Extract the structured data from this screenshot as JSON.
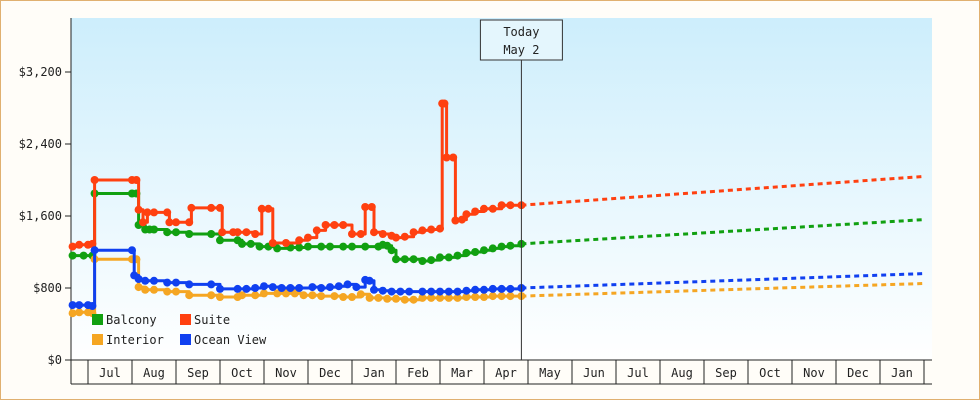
{
  "chart_data": {
    "type": "line",
    "title": "",
    "xlabel": "",
    "ylabel": "",
    "ylim": [
      0,
      3800
    ],
    "y_ticks": [
      {
        "value": 0,
        "label": "$0"
      },
      {
        "value": 800,
        "label": "$800"
      },
      {
        "value": 1600,
        "label": "$1,600"
      },
      {
        "value": 2400,
        "label": "$2,400"
      },
      {
        "value": 3200,
        "label": "$3,200"
      }
    ],
    "x_unit": "month index (0 = start of Jul)",
    "xlim": [
      -0.4,
      19.0
    ],
    "months": [
      "Jul",
      "Aug",
      "Sep",
      "Oct",
      "Nov",
      "Dec",
      "Jan",
      "Feb",
      "Mar",
      "Apr",
      "May",
      "Jun",
      "Jul",
      "Aug",
      "Sep",
      "Oct",
      "Nov",
      "Dec",
      "Jan"
    ],
    "today": {
      "x": 9.85,
      "line1": "Today",
      "line2": "May 2"
    },
    "grid": false,
    "legend_position": "bottom-left",
    "colors": {
      "Balcony": "#11a011",
      "Suite": "#ff4010",
      "Interior": "#f5a623",
      "Ocean View": "#1040f0"
    },
    "series": [
      {
        "name": "Balcony",
        "color": "#11a011",
        "values": [
          [
            -0.35,
            1160
          ],
          [
            -0.1,
            1160
          ],
          [
            0.1,
            1160
          ],
          [
            0.15,
            1850
          ],
          [
            1.0,
            1850
          ],
          [
            1.1,
            1850
          ],
          [
            1.15,
            1500
          ],
          [
            1.3,
            1450
          ],
          [
            1.4,
            1450
          ],
          [
            1.5,
            1450
          ],
          [
            1.8,
            1420
          ],
          [
            2.0,
            1420
          ],
          [
            2.3,
            1400
          ],
          [
            2.8,
            1400
          ],
          [
            3.0,
            1330
          ],
          [
            3.4,
            1330
          ],
          [
            3.5,
            1290
          ],
          [
            3.7,
            1290
          ],
          [
            3.9,
            1260
          ],
          [
            4.1,
            1260
          ],
          [
            4.3,
            1240
          ],
          [
            4.6,
            1250
          ],
          [
            4.8,
            1250
          ],
          [
            5.0,
            1260
          ],
          [
            5.3,
            1260
          ],
          [
            5.5,
            1260
          ],
          [
            5.8,
            1260
          ],
          [
            6.0,
            1260
          ],
          [
            6.3,
            1260
          ],
          [
            6.6,
            1260
          ],
          [
            6.7,
            1280
          ],
          [
            6.8,
            1270
          ],
          [
            6.9,
            1220
          ],
          [
            7.0,
            1120
          ],
          [
            7.2,
            1120
          ],
          [
            7.4,
            1120
          ],
          [
            7.6,
            1100
          ],
          [
            7.8,
            1110
          ],
          [
            8.0,
            1140
          ],
          [
            8.2,
            1140
          ],
          [
            8.4,
            1160
          ],
          [
            8.6,
            1190
          ],
          [
            8.8,
            1200
          ],
          [
            9.0,
            1220
          ],
          [
            9.2,
            1240
          ],
          [
            9.4,
            1260
          ],
          [
            9.6,
            1270
          ],
          [
            9.85,
            1290
          ]
        ],
        "forecast": [
          [
            9.85,
            1290
          ],
          [
            19.0,
            1560
          ]
        ]
      },
      {
        "name": "Suite",
        "color": "#ff4010",
        "values": [
          [
            -0.35,
            1260
          ],
          [
            -0.2,
            1280
          ],
          [
            0.0,
            1280
          ],
          [
            0.1,
            1290
          ],
          [
            0.15,
            2000
          ],
          [
            1.0,
            2000
          ],
          [
            1.1,
            2000
          ],
          [
            1.15,
            1670
          ],
          [
            1.25,
            1530
          ],
          [
            1.35,
            1640
          ],
          [
            1.5,
            1640
          ],
          [
            1.8,
            1640
          ],
          [
            1.85,
            1530
          ],
          [
            2.0,
            1530
          ],
          [
            2.3,
            1530
          ],
          [
            2.35,
            1690
          ],
          [
            2.8,
            1690
          ],
          [
            3.0,
            1690
          ],
          [
            3.05,
            1420
          ],
          [
            3.3,
            1420
          ],
          [
            3.4,
            1420
          ],
          [
            3.6,
            1420
          ],
          [
            3.8,
            1400
          ],
          [
            3.95,
            1680
          ],
          [
            4.1,
            1680
          ],
          [
            4.2,
            1300
          ],
          [
            4.5,
            1300
          ],
          [
            4.8,
            1330
          ],
          [
            5.0,
            1360
          ],
          [
            5.2,
            1440
          ],
          [
            5.4,
            1500
          ],
          [
            5.6,
            1500
          ],
          [
            5.8,
            1500
          ],
          [
            6.0,
            1400
          ],
          [
            6.2,
            1400
          ],
          [
            6.3,
            1700
          ],
          [
            6.45,
            1700
          ],
          [
            6.5,
            1420
          ],
          [
            6.7,
            1400
          ],
          [
            6.9,
            1380
          ],
          [
            7.0,
            1360
          ],
          [
            7.2,
            1370
          ],
          [
            7.4,
            1420
          ],
          [
            7.6,
            1440
          ],
          [
            7.8,
            1450
          ],
          [
            8.0,
            1460
          ],
          [
            8.05,
            2850
          ],
          [
            8.1,
            2850
          ],
          [
            8.15,
            2250
          ],
          [
            8.3,
            2250
          ],
          [
            8.35,
            1550
          ],
          [
            8.5,
            1560
          ],
          [
            8.6,
            1620
          ],
          [
            8.8,
            1650
          ],
          [
            9.0,
            1680
          ],
          [
            9.2,
            1680
          ],
          [
            9.4,
            1720
          ],
          [
            9.6,
            1720
          ],
          [
            9.85,
            1720
          ]
        ],
        "forecast": [
          [
            9.85,
            1720
          ],
          [
            19.0,
            2040
          ]
        ]
      },
      {
        "name": "Interior",
        "color": "#f5a623",
        "values": [
          [
            -0.35,
            520
          ],
          [
            -0.2,
            530
          ],
          [
            0.0,
            530
          ],
          [
            0.1,
            520
          ],
          [
            0.15,
            1120
          ],
          [
            1.0,
            1120
          ],
          [
            1.1,
            1120
          ],
          [
            1.15,
            810
          ],
          [
            1.3,
            780
          ],
          [
            1.5,
            780
          ],
          [
            1.8,
            760
          ],
          [
            2.0,
            760
          ],
          [
            2.3,
            720
          ],
          [
            2.8,
            720
          ],
          [
            3.0,
            700
          ],
          [
            3.4,
            700
          ],
          [
            3.5,
            720
          ],
          [
            3.8,
            720
          ],
          [
            4.0,
            740
          ],
          [
            4.3,
            740
          ],
          [
            4.5,
            740
          ],
          [
            4.7,
            740
          ],
          [
            4.9,
            720
          ],
          [
            5.1,
            720
          ],
          [
            5.3,
            710
          ],
          [
            5.6,
            710
          ],
          [
            5.8,
            700
          ],
          [
            6.0,
            700
          ],
          [
            6.2,
            730
          ],
          [
            6.4,
            690
          ],
          [
            6.6,
            690
          ],
          [
            6.8,
            680
          ],
          [
            7.0,
            680
          ],
          [
            7.2,
            670
          ],
          [
            7.4,
            670
          ],
          [
            7.6,
            690
          ],
          [
            7.8,
            690
          ],
          [
            8.0,
            690
          ],
          [
            8.2,
            690
          ],
          [
            8.4,
            690
          ],
          [
            8.6,
            700
          ],
          [
            8.8,
            700
          ],
          [
            9.0,
            700
          ],
          [
            9.2,
            710
          ],
          [
            9.4,
            710
          ],
          [
            9.6,
            710
          ],
          [
            9.85,
            710
          ]
        ],
        "forecast": [
          [
            9.85,
            710
          ],
          [
            19.0,
            850
          ]
        ]
      },
      {
        "name": "Ocean View",
        "color": "#1040f0",
        "values": [
          [
            -0.35,
            610
          ],
          [
            -0.2,
            610
          ],
          [
            0.0,
            610
          ],
          [
            0.1,
            600
          ],
          [
            0.15,
            1220
          ],
          [
            1.0,
            1220
          ],
          [
            1.05,
            940
          ],
          [
            1.15,
            900
          ],
          [
            1.3,
            880
          ],
          [
            1.5,
            880
          ],
          [
            1.8,
            860
          ],
          [
            2.0,
            860
          ],
          [
            2.3,
            840
          ],
          [
            2.8,
            840
          ],
          [
            3.0,
            790
          ],
          [
            3.4,
            790
          ],
          [
            3.6,
            790
          ],
          [
            3.8,
            800
          ],
          [
            4.0,
            820
          ],
          [
            4.2,
            810
          ],
          [
            4.4,
            800
          ],
          [
            4.6,
            800
          ],
          [
            4.8,
            800
          ],
          [
            5.1,
            810
          ],
          [
            5.3,
            800
          ],
          [
            5.5,
            810
          ],
          [
            5.7,
            820
          ],
          [
            5.9,
            840
          ],
          [
            6.1,
            810
          ],
          [
            6.3,
            890
          ],
          [
            6.4,
            880
          ],
          [
            6.5,
            780
          ],
          [
            6.7,
            770
          ],
          [
            6.9,
            760
          ],
          [
            7.1,
            760
          ],
          [
            7.3,
            760
          ],
          [
            7.6,
            760
          ],
          [
            7.8,
            760
          ],
          [
            8.0,
            760
          ],
          [
            8.2,
            760
          ],
          [
            8.4,
            760
          ],
          [
            8.6,
            770
          ],
          [
            8.8,
            780
          ],
          [
            9.0,
            780
          ],
          [
            9.2,
            790
          ],
          [
            9.4,
            790
          ],
          [
            9.6,
            790
          ],
          [
            9.85,
            800
          ]
        ],
        "forecast": [
          [
            9.85,
            800
          ],
          [
            19.0,
            960
          ]
        ]
      }
    ]
  }
}
